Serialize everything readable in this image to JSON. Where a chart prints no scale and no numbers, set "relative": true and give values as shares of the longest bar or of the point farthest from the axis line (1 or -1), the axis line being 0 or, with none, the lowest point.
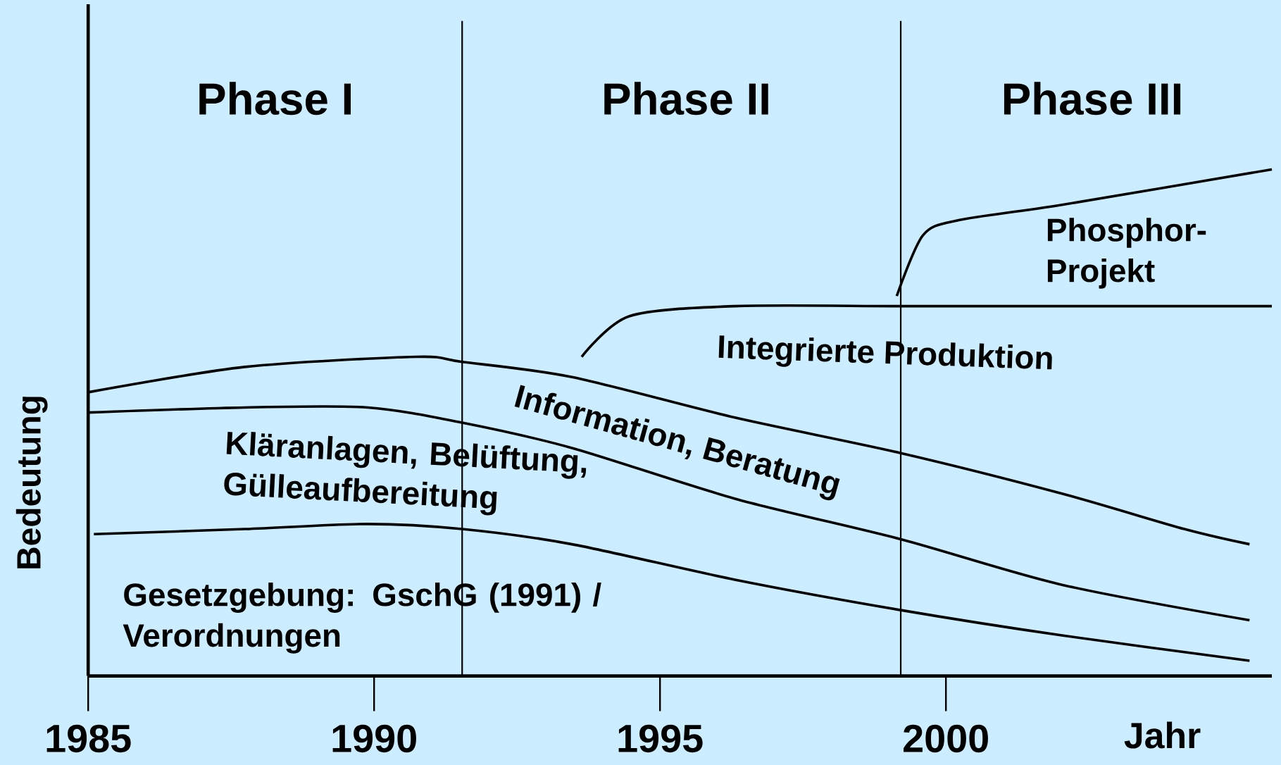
{
  "chart_data": {
    "type": "line",
    "relative": true,
    "xlabel": "Jahr",
    "ylabel": "Bedeutung",
    "xlim": [
      1985,
      2005.7
    ],
    "xticks": [
      1985,
      1990,
      1995,
      2000
    ],
    "annotations": [
      "Phase I",
      "Phase II",
      "Phase III"
    ],
    "ref_lines": [
      {
        "axis": "x",
        "value": 1991.54,
        "color": "#000000"
      },
      {
        "axis": "x",
        "value": 1999.21,
        "color": "#000000"
      }
    ],
    "series": [
      {
        "name": "Gesetzgebung: GschG (1991) / Verordnungen",
        "color": "#000000",
        "x": [
          1985.1,
          1987.74,
          1989.89,
          1991.54,
          1993.46,
          1996.31,
          1999.21,
          2002.03,
          2005.31
        ],
        "values": [
          0.28,
          0.29,
          0.3,
          0.29,
          0.26,
          0.19,
          0.13,
          0.08,
          0.03
        ]
      },
      {
        "name": "Kläranlagen, Belüftung, Gülleaufbereitung",
        "color": "#000000",
        "x": [
          1985,
          1987.74,
          1989.89,
          1991.54,
          1993.46,
          1996.31,
          1999.21,
          2002.03,
          2005.31
        ],
        "values": [
          0.52,
          0.53,
          0.53,
          0.5,
          0.45,
          0.35,
          0.27,
          0.18,
          0.11
        ]
      },
      {
        "name": "Information, Beratung",
        "color": "#000000",
        "x": [
          1985,
          1987.74,
          1990.74,
          1991.54,
          1993.46,
          1996.31,
          1999.21,
          2002.03,
          2004.17,
          2005.31
        ],
        "values": [
          0.56,
          0.61,
          0.63,
          0.62,
          0.59,
          0.51,
          0.44,
          0.36,
          0.29,
          0.26
        ]
      },
      {
        "name": "Integrierte Produktion",
        "color": "#000000",
        "x": [
          1993.63,
          1994.46,
          1996.31,
          1999.21,
          2002.03,
          2005.7
        ],
        "values": [
          0.63,
          0.71,
          0.73,
          0.73,
          0.73,
          0.73
        ]
      },
      {
        "name": "Phosphor-Projekt",
        "color": "#000000",
        "x": [
          1999.14,
          1999.6,
          2000.24,
          2002.03,
          2005.7
        ],
        "values": [
          0.75,
          0.87,
          0.9,
          0.93,
          1.0
        ]
      }
    ]
  }
}
